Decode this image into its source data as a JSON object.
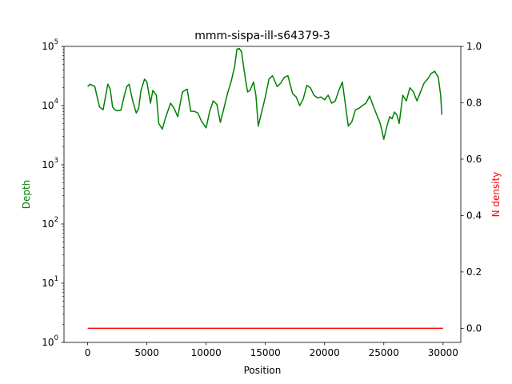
{
  "chart_data": {
    "type": "line",
    "title": "mmm-sispa-ill-s64379-3",
    "xlabel": "Position",
    "ylabel_left": "Depth",
    "ylabel_right": "N density",
    "xlim": [
      -2000,
      31500
    ],
    "ylim_left": [
      1,
      100000
    ],
    "ylim_right": [
      -0.05,
      1.0
    ],
    "left_scale": "log",
    "grid": false,
    "colors": {
      "depth": "#008000",
      "n_density": "#ff0000"
    },
    "x_ticks": [
      {
        "value": 0,
        "label": "0"
      },
      {
        "value": 5000,
        "label": "5000"
      },
      {
        "value": 10000,
        "label": "10000"
      },
      {
        "value": 15000,
        "label": "15000"
      },
      {
        "value": 20000,
        "label": "20000"
      },
      {
        "value": 25000,
        "label": "25000"
      },
      {
        "value": 30000,
        "label": "30000"
      }
    ],
    "left_ticks": [
      {
        "value": 1,
        "base": "10",
        "exp": "0"
      },
      {
        "value": 10,
        "base": "10",
        "exp": "1"
      },
      {
        "value": 100,
        "base": "10",
        "exp": "2"
      },
      {
        "value": 1000,
        "base": "10",
        "exp": "3"
      },
      {
        "value": 10000,
        "base": "10",
        "exp": "4"
      },
      {
        "value": 100000,
        "base": "10",
        "exp": "5"
      }
    ],
    "right_ticks": [
      {
        "value": 0.0,
        "label": "0.0"
      },
      {
        "value": 0.2,
        "label": "0.2"
      },
      {
        "value": 0.4,
        "label": "0.4"
      },
      {
        "value": 0.6,
        "label": "0.6"
      },
      {
        "value": 0.8,
        "label": "0.8"
      },
      {
        "value": 1.0,
        "label": "1.0"
      }
    ],
    "series": [
      {
        "axis": "left",
        "x": [
          0,
          200,
          400,
          600,
          800,
          1000,
          1300,
          1500,
          1700,
          1900,
          2100,
          2300,
          2500,
          2800,
          3100,
          3300,
          3500,
          3800,
          4100,
          4300,
          4500,
          4800,
          5000,
          5300,
          5500,
          5800,
          6000,
          6300,
          6600,
          7000,
          7300,
          7600,
          8000,
          8400,
          8700,
          9000,
          9300,
          9600,
          10000,
          10300,
          10600,
          10900,
          11200,
          11500,
          11800,
          12100,
          12400,
          12600,
          12800,
          13000,
          13200,
          13500,
          13700,
          14000,
          14200,
          14400,
          14700,
          15000,
          15300,
          15600,
          16000,
          16300,
          16600,
          16900,
          17300,
          17600,
          17900,
          18200,
          18500,
          18800,
          19100,
          19400,
          19700,
          20000,
          20300,
          20600,
          20900,
          21200,
          21500,
          21800,
          22000,
          22300,
          22600,
          22900,
          23200,
          23500,
          23800,
          24100,
          24400,
          24700,
          25000,
          25300,
          25500,
          25700,
          25900,
          26100,
          26300,
          26600,
          26900,
          27200,
          27500,
          27800,
          28100,
          28400,
          28700,
          29000,
          29300,
          29600,
          29800,
          29900
        ],
        "values": [
          21000,
          23000,
          22000,
          21000,
          14000,
          9500,
          8500,
          14000,
          23000,
          19000,
          9500,
          8500,
          8200,
          8300,
          15000,
          21000,
          23000,
          12000,
          7500,
          9000,
          18000,
          28000,
          25000,
          11000,
          18000,
          15000,
          5000,
          4000,
          6500,
          11000,
          9000,
          6500,
          17000,
          19000,
          8000,
          8000,
          7500,
          5500,
          4200,
          8000,
          12000,
          10500,
          5200,
          9000,
          16000,
          25000,
          45000,
          90000,
          92000,
          80000,
          40000,
          17000,
          18000,
          25000,
          15000,
          4500,
          8000,
          14000,
          28000,
          32000,
          21000,
          24000,
          30000,
          32000,
          16000,
          14000,
          10000,
          13000,
          22000,
          20000,
          15000,
          13500,
          14000,
          12500,
          15000,
          11000,
          12000,
          18000,
          25000,
          9000,
          4500,
          5300,
          8500,
          9000,
          10000,
          11000,
          14500,
          10000,
          7000,
          5000,
          2700,
          4800,
          6500,
          6000,
          7800,
          7000,
          5000,
          15000,
          12000,
          20000,
          17000,
          12000,
          17000,
          24000,
          28000,
          35000,
          38000,
          30000,
          15000,
          7000
        ]
      },
      {
        "axis": "right",
        "x": [
          0,
          30000
        ],
        "values": [
          0.0,
          0.0
        ]
      }
    ]
  }
}
